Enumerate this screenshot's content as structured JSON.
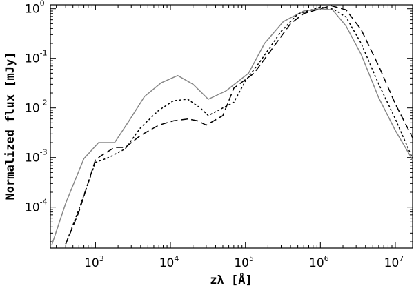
{
  "chart_data": {
    "type": "line",
    "title": "",
    "xlabel": "zλ [Å]",
    "ylabel": "Normalized flux [mJy]",
    "xscale": "log",
    "yscale": "log",
    "xlim": [
      250,
      17000000
    ],
    "ylim": [
      1.5e-05,
      1.2
    ],
    "grid": false,
    "legend": "none",
    "x_ticks": [
      {
        "base": "10",
        "exp": "3",
        "value": 1000
      },
      {
        "base": "10",
        "exp": "4",
        "value": 10000
      },
      {
        "base": "10",
        "exp": "5",
        "value": 100000
      },
      {
        "base": "10",
        "exp": "6",
        "value": 1000000
      },
      {
        "base": "10",
        "exp": "7",
        "value": 10000000
      }
    ],
    "y_ticks": [
      {
        "base": "10",
        "exp": "-4",
        "value": 0.0001
      },
      {
        "base": "10",
        "exp": "-3",
        "value": 0.001
      },
      {
        "base": "10",
        "exp": "-2",
        "value": 0.01
      },
      {
        "base": "10",
        "exp": "-1",
        "value": 0.1
      },
      {
        "base": "10",
        "exp": "0",
        "value": 1
      }
    ],
    "series": [
      {
        "style": "solid",
        "color": "#888888",
        "points": [
          [
            260,
            1.7e-05
          ],
          [
            400,
            0.00012
          ],
          [
            700,
            0.00095
          ],
          [
            1100,
            0.002
          ],
          [
            1800,
            0.002
          ],
          [
            2800,
            0.0055
          ],
          [
            4500,
            0.017
          ],
          [
            7500,
            0.032
          ],
          [
            12500,
            0.045
          ],
          [
            20000,
            0.03
          ],
          [
            32000,
            0.015
          ],
          [
            55000,
            0.022
          ],
          [
            110000,
            0.05
          ],
          [
            180000,
            0.2
          ],
          [
            320000,
            0.55
          ],
          [
            600000,
            0.9
          ],
          [
            1000000,
            1.0
          ],
          [
            1450000,
            0.95
          ],
          [
            2200000,
            0.45
          ],
          [
            3500000,
            0.12
          ],
          [
            6000000,
            0.016
          ],
          [
            10000000,
            0.0035
          ],
          [
            17000000,
            0.0009
          ]
        ]
      },
      {
        "style": "dotted",
        "color": "#000000",
        "points": [
          [
            400,
            1.8e-05
          ],
          [
            600,
            9e-05
          ],
          [
            1000,
            0.0008
          ],
          [
            1500,
            0.001
          ],
          [
            2500,
            0.0015
          ],
          [
            4000,
            0.004
          ],
          [
            7000,
            0.009
          ],
          [
            11000,
            0.014
          ],
          [
            17000,
            0.015
          ],
          [
            25000,
            0.01
          ],
          [
            32000,
            0.007
          ],
          [
            50000,
            0.01
          ],
          [
            70000,
            0.013
          ],
          [
            100000,
            0.035
          ],
          [
            160000,
            0.09
          ],
          [
            300000,
            0.35
          ],
          [
            500000,
            0.78
          ],
          [
            1000000,
            1.08
          ],
          [
            1500000,
            0.98
          ],
          [
            2200000,
            0.68
          ],
          [
            3500000,
            0.2
          ],
          [
            6000000,
            0.03
          ],
          [
            10000000,
            0.006
          ],
          [
            17000000,
            0.00095
          ]
        ]
      },
      {
        "style": "dashed",
        "color": "#000000",
        "points": [
          [
            400,
            1.8e-05
          ],
          [
            600,
            8e-05
          ],
          [
            1000,
            0.0009
          ],
          [
            1200,
            0.0011
          ],
          [
            1800,
            0.0016
          ],
          [
            2500,
            0.0016
          ],
          [
            4000,
            0.0028
          ],
          [
            7000,
            0.0045
          ],
          [
            11000,
            0.0055
          ],
          [
            17000,
            0.006
          ],
          [
            23000,
            0.0055
          ],
          [
            30000,
            0.0045
          ],
          [
            50000,
            0.007
          ],
          [
            70000,
            0.025
          ],
          [
            130000,
            0.05
          ],
          [
            200000,
            0.12
          ],
          [
            400000,
            0.5
          ],
          [
            600000,
            0.8
          ],
          [
            1000000,
            1.0
          ],
          [
            1400000,
            1.15
          ],
          [
            2200000,
            0.95
          ],
          [
            3500000,
            0.38
          ],
          [
            6000000,
            0.07
          ],
          [
            10000000,
            0.012
          ],
          [
            17000000,
            0.0025
          ]
        ]
      }
    ]
  }
}
